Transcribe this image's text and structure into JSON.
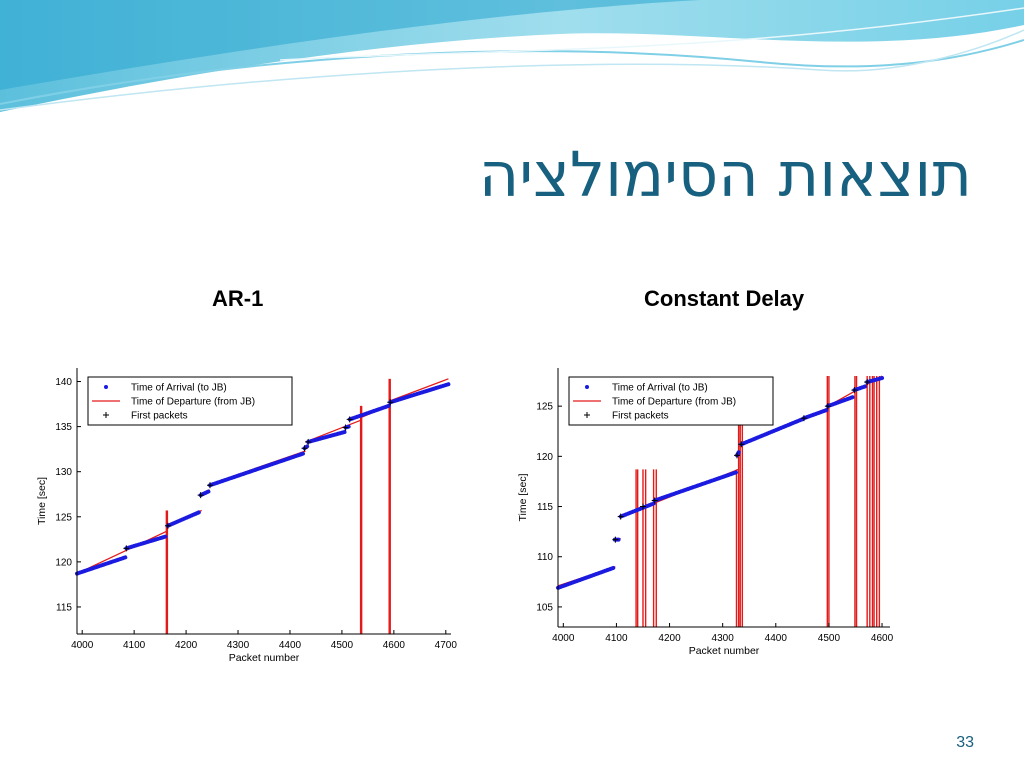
{
  "slide": {
    "title": "תוצאות הסימולציה",
    "number": "33"
  },
  "charts": {
    "left_title": "AR-1",
    "right_title": "Constant Delay"
  },
  "colors": {
    "arrival": "#1a1ae0",
    "departure": "#e41a1a",
    "first": "#000000",
    "title": "#17607f"
  },
  "chart_data": [
    {
      "type": "line",
      "title": "AR-1",
      "xlabel": "Packet number",
      "ylabel": "Time [sec]",
      "xlim": [
        3990,
        4710
      ],
      "ylim": [
        112,
        141.5
      ],
      "xticks": [
        4000,
        4100,
        4200,
        4300,
        4400,
        4500,
        4600,
        4700
      ],
      "yticks": [
        115,
        120,
        125,
        130,
        135,
        140
      ],
      "legend": [
        "Time of Arrival (to JB)",
        "Time of Departure (from JB)",
        "First packets"
      ],
      "legend_position": "top-left",
      "series": [
        {
          "name": "Time of Arrival (to JB)",
          "segments": [
            [
              [
                3990,
                118.7
              ],
              [
                4083,
                120.5
              ]
            ],
            [
              [
                4085,
                121.5
              ],
              [
                4160,
                122.8
              ]
            ],
            [
              [
                4165,
                124.0
              ],
              [
                4225,
                125.5
              ]
            ],
            [
              [
                4228,
                127.4
              ],
              [
                4243,
                127.8
              ]
            ],
            [
              [
                4246,
                128.5
              ],
              [
                4425,
                132.0
              ]
            ],
            [
              [
                4428,
                132.6
              ],
              [
                4433,
                132.8
              ]
            ],
            [
              [
                4435,
                133.3
              ],
              [
                4505,
                134.4
              ]
            ],
            [
              [
                4507,
                134.9
              ],
              [
                4513,
                135.0
              ]
            ],
            [
              [
                4515,
                135.8
              ],
              [
                4590,
                137.3
              ]
            ],
            [
              [
                4593,
                137.7
              ],
              [
                4705,
                139.7
              ]
            ]
          ]
        },
        {
          "name": "Time of Departure (from JB)",
          "segments": [
            [
              [
                3990,
                118.7
              ],
              [
                4163,
                123.4
              ]
            ],
            [
              [
                4163,
                124.1
              ],
              [
                4230,
                125.7
              ]
            ],
            [
              [
                4230,
                127.6
              ],
              [
                4245,
                128.0
              ]
            ],
            [
              [
                4245,
                128.6
              ],
              [
                4430,
                132.3
              ]
            ],
            [
              [
                4430,
                133.3
              ],
              [
                4536,
                135.7
              ]
            ],
            [
              [
                4536,
                136.0
              ],
              [
                4590,
                137.3
              ]
            ],
            [
              [
                4590,
                137.8
              ],
              [
                4705,
                140.3
              ]
            ]
          ],
          "spikes_x": [
            4162,
            4164,
            4536,
            4538,
            4591,
            4593
          ]
        },
        {
          "name": "First packets",
          "points": [
            [
              4085,
              121.5
            ],
            [
              4165,
              124.0
            ],
            [
              4228,
              127.4
            ],
            [
              4246,
              128.5
            ],
            [
              4428,
              132.6
            ],
            [
              4435,
              133.3
            ],
            [
              4507,
              134.9
            ],
            [
              4515,
              135.8
            ],
            [
              4593,
              137.7
            ]
          ]
        }
      ]
    },
    {
      "type": "line",
      "title": "Constant Delay",
      "xlabel": "Packet number",
      "ylabel": "Time [sec]",
      "xlim": [
        3990,
        4615
      ],
      "ylim": [
        103,
        128.8
      ],
      "xticks": [
        4000,
        4100,
        4200,
        4300,
        4400,
        4500,
        4600
      ],
      "yticks": [
        105,
        110,
        115,
        120,
        125
      ],
      "legend": [
        "Time of Arrival (to JB)",
        "Time of Departure (from JB)",
        "First packets"
      ],
      "legend_position": "top-left",
      "series": [
        {
          "name": "Time of Arrival (to JB)",
          "segments": [
            [
              [
                3990,
                106.9
              ],
              [
                4095,
                108.9
              ]
            ],
            [
              [
                4097,
                111.7
              ],
              [
                4105,
                111.7
              ]
            ],
            [
              [
                4108,
                114.0
              ],
              [
                4170,
                115.3
              ]
            ],
            [
              [
                4172,
                115.6
              ],
              [
                4325,
                118.4
              ]
            ],
            [
              [
                4327,
                120.1
              ],
              [
                4330,
                120.4
              ]
            ],
            [
              [
                4335,
                121.2
              ],
              [
                4450,
                123.7
              ]
            ],
            [
              [
                4453,
                123.8
              ],
              [
                4495,
                124.6
              ]
            ],
            [
              [
                4498,
                125.0
              ],
              [
                4545,
                125.9
              ]
            ],
            [
              [
                4548,
                126.6
              ],
              [
                4570,
                127.0
              ]
            ],
            [
              [
                4572,
                127.4
              ],
              [
                4600,
                127.8
              ]
            ]
          ]
        },
        {
          "name": "Time of Departure (from JB)",
          "segments": [
            [
              [
                3990,
                107.1
              ],
              [
                4098,
                109.0
              ]
            ],
            [
              [
                4098,
                111.8
              ],
              [
                4108,
                111.8
              ]
            ],
            [
              [
                4108,
                114.0
              ],
              [
                4330,
                118.7
              ]
            ],
            [
              [
                4330,
                121.0
              ],
              [
                4498,
                124.8
              ]
            ],
            [
              [
                4498,
                125.0
              ],
              [
                4600,
                128.0
              ]
            ]
          ],
          "spikes_x": [
            4137,
            4140,
            4150,
            4155,
            4170,
            4175,
            4326,
            4330,
            4333,
            4337,
            4497,
            4500,
            4549,
            4552,
            4572,
            4577,
            4582,
            4585,
            4590,
            4595
          ]
        },
        {
          "name": "First packets",
          "points": [
            [
              4098,
              111.7
            ],
            [
              4108,
              114.0
            ],
            [
              4150,
              115.0
            ],
            [
              4172,
              115.6
            ],
            [
              4327,
              120.1
            ],
            [
              4335,
              121.2
            ],
            [
              4453,
              123.8
            ],
            [
              4498,
              125.0
            ],
            [
              4548,
              126.6
            ],
            [
              4572,
              127.4
            ]
          ]
        }
      ]
    }
  ]
}
